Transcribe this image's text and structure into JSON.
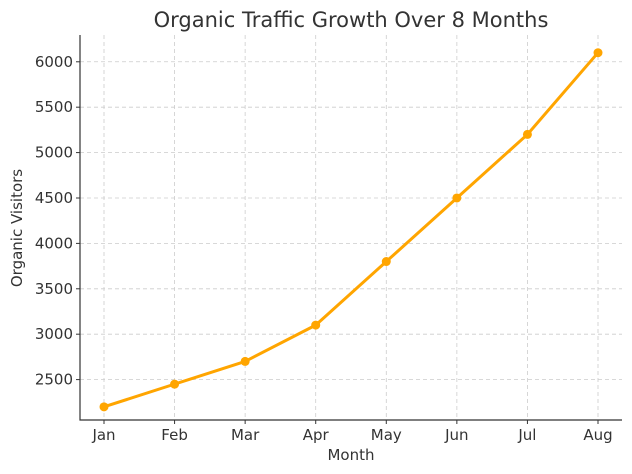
{
  "chart_data": {
    "type": "line",
    "title": "Organic Traffic Growth Over 8 Months",
    "xlabel": "Month",
    "ylabel": "Organic Visitors",
    "categories": [
      "Jan",
      "Feb",
      "Mar",
      "Apr",
      "May",
      "Jun",
      "Jul",
      "Aug"
    ],
    "series": [
      {
        "name": "Organic Visitors",
        "values": [
          2200,
          2450,
          2700,
          3100,
          3800,
          4500,
          5200,
          6100
        ],
        "color": "#FFA500"
      }
    ],
    "yticks": [
      2500,
      3000,
      3500,
      4000,
      4500,
      5000,
      5500,
      6000
    ],
    "ylim": [
      2055,
      6295
    ],
    "grid": true,
    "legend": null,
    "marker": "circle"
  }
}
